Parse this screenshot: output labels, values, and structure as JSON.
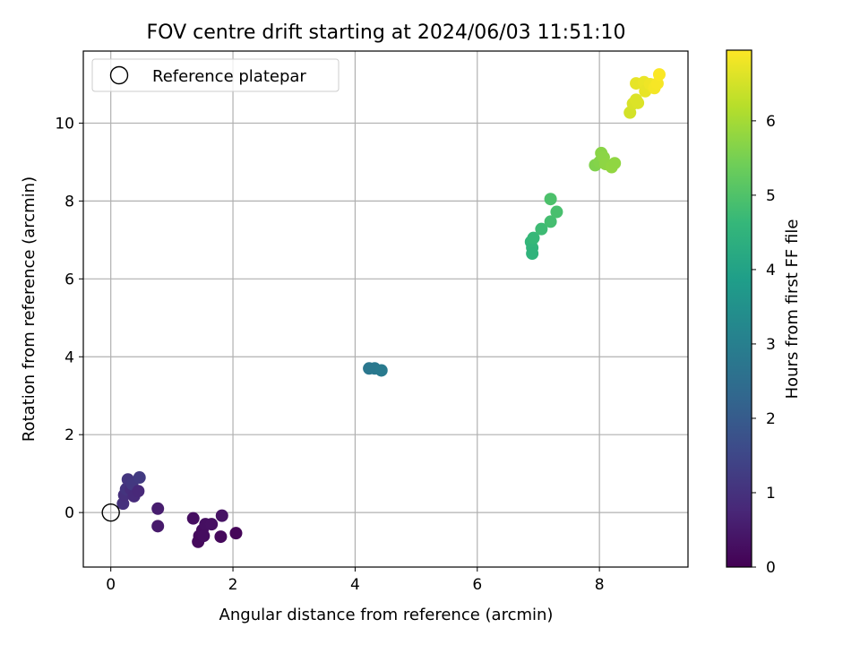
{
  "chart_data": {
    "type": "scatter",
    "title": "FOV centre drift starting at 2024/06/03 11:51:10",
    "xlabel": "Angular distance from reference (arcmin)",
    "ylabel": "Rotation from reference (arcmin)",
    "xlim": [
      -0.45,
      9.45
    ],
    "ylim": [
      -1.4,
      11.85
    ],
    "xticks": [
      0,
      2,
      4,
      6,
      8
    ],
    "xtick_labels": [
      "0",
      "2",
      "4",
      "6",
      "8"
    ],
    "yticks": [
      0,
      2,
      4,
      6,
      8,
      10
    ],
    "ytick_labels": [
      "0",
      "2",
      "4",
      "6",
      "8",
      "10"
    ],
    "grid": true,
    "legend": {
      "position": "top-left",
      "entries": [
        "Reference platepar"
      ]
    },
    "reference_point": {
      "x": 0,
      "y": 0,
      "name": "Reference platepar"
    },
    "colorbar": {
      "label": "Hours from first FF file",
      "min": 0,
      "max": 6.95,
      "colormap": [
        "#440154",
        "#482878",
        "#3e4989",
        "#31688e",
        "#26828e",
        "#1f9e89",
        "#35b779",
        "#6ece58",
        "#b5de2b",
        "#fde725"
      ],
      "ticks": [
        0,
        1,
        2,
        3,
        4,
        5,
        6
      ],
      "tick_labels": [
        "0",
        "1",
        "2",
        "3",
        "4",
        "5",
        "6"
      ]
    },
    "points": [
      {
        "x": 1.35,
        "y": -0.15,
        "h": 0.25
      },
      {
        "x": 1.45,
        "y": -0.6,
        "h": 0.2
      },
      {
        "x": 1.43,
        "y": -0.75,
        "h": 0.18
      },
      {
        "x": 1.5,
        "y": -0.45,
        "h": 0.22
      },
      {
        "x": 1.55,
        "y": -0.3,
        "h": 0.28
      },
      {
        "x": 1.52,
        "y": -0.6,
        "h": 0.24
      },
      {
        "x": 1.65,
        "y": -0.3,
        "h": 0.3
      },
      {
        "x": 1.82,
        "y": -0.08,
        "h": 0.35
      },
      {
        "x": 1.8,
        "y": -0.62,
        "h": 0.15
      },
      {
        "x": 2.05,
        "y": -0.53,
        "h": 0.1
      },
      {
        "x": 0.77,
        "y": 0.1,
        "h": 0.55
      },
      {
        "x": 0.77,
        "y": -0.35,
        "h": 0.5
      },
      {
        "x": 0.2,
        "y": 0.23,
        "h": 1.0
      },
      {
        "x": 0.22,
        "y": 0.45,
        "h": 0.95
      },
      {
        "x": 0.25,
        "y": 0.6,
        "h": 1.05
      },
      {
        "x": 0.28,
        "y": 0.85,
        "h": 1.1
      },
      {
        "x": 0.33,
        "y": 0.6,
        "h": 0.9
      },
      {
        "x": 0.38,
        "y": 0.42,
        "h": 0.85
      },
      {
        "x": 0.35,
        "y": 0.73,
        "h": 1.15
      },
      {
        "x": 0.45,
        "y": 0.55,
        "h": 0.8
      },
      {
        "x": 0.47,
        "y": 0.9,
        "h": 1.2
      },
      {
        "x": 4.23,
        "y": 3.7,
        "h": 2.75
      },
      {
        "x": 4.32,
        "y": 3.7,
        "h": 2.8
      },
      {
        "x": 4.43,
        "y": 3.65,
        "h": 2.85
      },
      {
        "x": 6.88,
        "y": 6.95,
        "h": 4.6
      },
      {
        "x": 6.9,
        "y": 6.8,
        "h": 4.55
      },
      {
        "x": 6.9,
        "y": 6.65,
        "h": 4.5
      },
      {
        "x": 6.92,
        "y": 7.05,
        "h": 4.65
      },
      {
        "x": 7.05,
        "y": 7.28,
        "h": 4.75
      },
      {
        "x": 7.2,
        "y": 7.47,
        "h": 4.85
      },
      {
        "x": 7.3,
        "y": 7.72,
        "h": 4.9
      },
      {
        "x": 7.2,
        "y": 8.05,
        "h": 4.95
      },
      {
        "x": 7.93,
        "y": 8.92,
        "h": 5.6
      },
      {
        "x": 8.0,
        "y": 9.0,
        "h": 5.65
      },
      {
        "x": 8.03,
        "y": 9.23,
        "h": 5.7
      },
      {
        "x": 8.07,
        "y": 9.12,
        "h": 5.72
      },
      {
        "x": 8.1,
        "y": 8.95,
        "h": 5.75
      },
      {
        "x": 8.2,
        "y": 8.87,
        "h": 5.8
      },
      {
        "x": 8.25,
        "y": 8.97,
        "h": 5.78
      },
      {
        "x": 8.5,
        "y": 10.27,
        "h": 6.5
      },
      {
        "x": 8.55,
        "y": 10.5,
        "h": 6.55
      },
      {
        "x": 8.6,
        "y": 10.6,
        "h": 6.6
      },
      {
        "x": 8.63,
        "y": 10.52,
        "h": 6.58
      },
      {
        "x": 8.6,
        "y": 11.02,
        "h": 6.7
      },
      {
        "x": 8.73,
        "y": 11.05,
        "h": 6.75
      },
      {
        "x": 8.75,
        "y": 10.82,
        "h": 6.72
      },
      {
        "x": 8.83,
        "y": 11.0,
        "h": 6.8
      },
      {
        "x": 8.9,
        "y": 10.9,
        "h": 6.85
      },
      {
        "x": 8.95,
        "y": 11.02,
        "h": 6.88
      },
      {
        "x": 8.98,
        "y": 11.25,
        "h": 6.92
      }
    ]
  }
}
